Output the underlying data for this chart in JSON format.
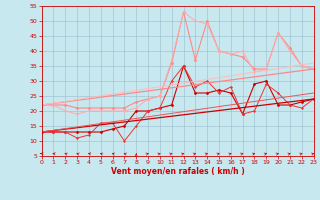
{
  "title": "",
  "xlabel": "Vent moyen/en rafales ( km/h )",
  "xlim": [
    0,
    23
  ],
  "ylim": [
    5,
    55
  ],
  "yticks": [
    5,
    10,
    15,
    20,
    25,
    30,
    35,
    40,
    45,
    50,
    55
  ],
  "xticks": [
    0,
    1,
    2,
    3,
    4,
    5,
    6,
    7,
    8,
    9,
    10,
    11,
    12,
    13,
    14,
    15,
    16,
    17,
    18,
    19,
    20,
    21,
    22,
    23
  ],
  "bg_color": "#c8e8f0",
  "grid_color": "#99bbcc",
  "lines": [
    {
      "x": [
        0,
        1,
        2,
        3,
        4,
        5,
        6,
        7,
        8,
        9,
        10,
        11,
        12,
        13,
        14,
        15,
        16,
        17,
        18,
        19,
        20,
        21,
        22,
        23
      ],
      "y": [
        13,
        13,
        13,
        13,
        13,
        13,
        14,
        15,
        20,
        20,
        21,
        22,
        35,
        26,
        26,
        27,
        26,
        19,
        29,
        30,
        22,
        22,
        23,
        24
      ],
      "color": "#cc0000",
      "lw": 0.8,
      "marker": "D",
      "ms": 1.5
    },
    {
      "x": [
        0,
        1,
        2,
        3,
        4,
        5,
        6,
        7,
        8,
        9,
        10,
        11,
        12,
        13,
        14,
        15,
        16,
        17,
        18,
        19,
        20,
        21,
        22,
        23
      ],
      "y": [
        13,
        13,
        13,
        11,
        12,
        16,
        16,
        10,
        15,
        20,
        21,
        30,
        35,
        28,
        30,
        26,
        28,
        19,
        20,
        29,
        26,
        22,
        21,
        24
      ],
      "color": "#ee3333",
      "lw": 0.7,
      "marker": "D",
      "ms": 1.2
    },
    {
      "x": [
        0,
        1,
        2,
        3,
        4,
        5,
        6,
        7,
        8,
        9,
        10,
        11,
        12,
        13,
        14,
        15,
        16,
        17,
        18,
        19,
        20,
        21,
        22,
        23
      ],
      "y": [
        22,
        22,
        22,
        21,
        21,
        21,
        21,
        21,
        23,
        24,
        25,
        36,
        53,
        37,
        50,
        40,
        39,
        38,
        34,
        34,
        46,
        41,
        35,
        34
      ],
      "color": "#ff8888",
      "lw": 0.8,
      "marker": "D",
      "ms": 1.5
    },
    {
      "x": [
        0,
        1,
        2,
        3,
        4,
        5,
        6,
        7,
        8,
        9,
        10,
        11,
        12,
        13,
        14,
        15,
        16,
        17,
        18,
        19,
        20,
        21,
        22,
        23
      ],
      "y": [
        22,
        22,
        20,
        19,
        20,
        20,
        20,
        20,
        21,
        24,
        25,
        37,
        53,
        50,
        49,
        40,
        39,
        40,
        33,
        34,
        46,
        40,
        35,
        34
      ],
      "color": "#ffaaaa",
      "lw": 0.7,
      "marker": "D",
      "ms": 1.2
    },
    {
      "x": [
        0,
        23
      ],
      "y": [
        13,
        24
      ],
      "color": "#cc0000",
      "lw": 0.9,
      "marker": null,
      "ms": 0
    },
    {
      "x": [
        0,
        23
      ],
      "y": [
        22,
        34
      ],
      "color": "#ff8888",
      "lw": 0.9,
      "marker": null,
      "ms": 0
    },
    {
      "x": [
        0,
        23
      ],
      "y": [
        13,
        26
      ],
      "color": "#ee5555",
      "lw": 0.7,
      "marker": null,
      "ms": 0
    },
    {
      "x": [
        0,
        23
      ],
      "y": [
        22,
        36
      ],
      "color": "#ffbbbb",
      "lw": 0.7,
      "marker": null,
      "ms": 0
    }
  ],
  "wind_angles": [
    270,
    300,
    315,
    315,
    300,
    315,
    315,
    315,
    0,
    45,
    45,
    45,
    45,
    45,
    45,
    45,
    45,
    45,
    45,
    45,
    45,
    45,
    45,
    45
  ]
}
